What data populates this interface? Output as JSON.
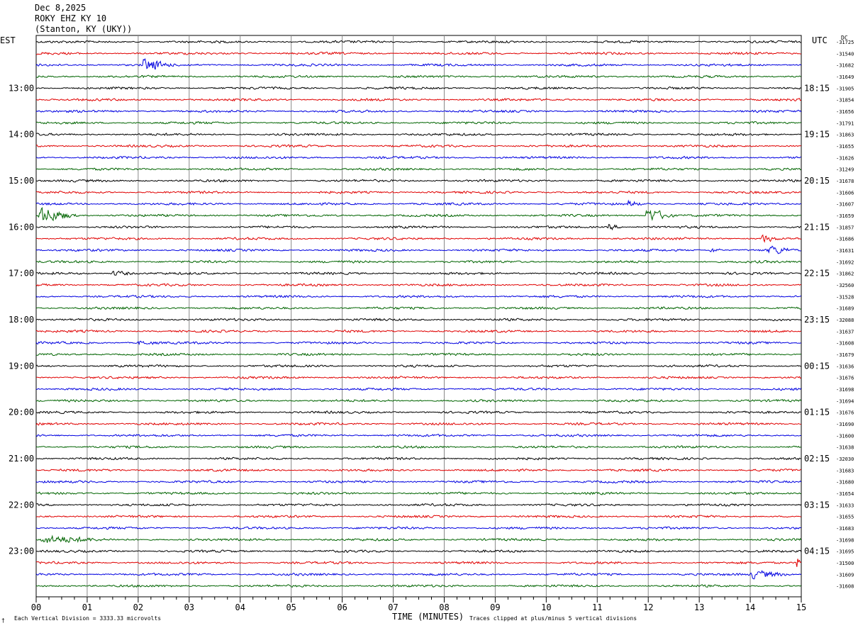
{
  "chart_data": {
    "type": "line",
    "title_lines": [
      "Dec 8,2025",
      "ROKY EHZ KY 10",
      "(Stanton, KY (UKY))"
    ],
    "left_axis_label": "EST",
    "right_axis_label": "UTC",
    "dc_label": "DC",
    "xlabel": "TIME (MINUTES)",
    "x_ticks": [
      "00",
      "01",
      "02",
      "03",
      "04",
      "05",
      "06",
      "07",
      "08",
      "09",
      "10",
      "11",
      "12",
      "13",
      "14",
      "15"
    ],
    "xlim": [
      0,
      15
    ],
    "est_hour_labels": [
      "13:00",
      "14:00",
      "15:00",
      "16:00",
      "17:00",
      "18:00",
      "19:00",
      "20:00",
      "21:00",
      "22:00",
      "23:00"
    ],
    "utc_hour_labels": [
      "18:15",
      "19:15",
      "20:15",
      "21:15",
      "22:15",
      "23:15",
      "00:15",
      "01:15",
      "02:15",
      "03:15",
      "04:15"
    ],
    "trace_colors": [
      "#000000",
      "#e00000",
      "#0000e0",
      "#006400"
    ],
    "dc_offsets": [
      "-31725",
      "-31540",
      "-31682",
      "-31649",
      "-31905",
      "-31854",
      "-31656",
      "-31791",
      "-31863",
      "-31655",
      "-31626",
      "-31249",
      "-31678",
      "-31606",
      "-31607",
      "-31659",
      "-31857",
      "-31686",
      "-31631",
      "-31692",
      "-31862",
      "-32560",
      "-31528",
      "-31689",
      "-32088",
      "-31637",
      "-31608",
      "-31679",
      "-31636",
      "-31676",
      "-31698",
      "-31694",
      "-31676",
      "-31690",
      "-31600",
      "-31638",
      "-32030",
      "-31683",
      "-31680",
      "-31654",
      "-31633",
      "-31655",
      "-31683",
      "-31698",
      "-31695",
      "-31500",
      "-31609",
      "-31608"
    ],
    "events": [
      {
        "trace": 2,
        "minute": 2.1,
        "amp": 9,
        "dur": 0.6
      },
      {
        "trace": 15,
        "minute": 0.05,
        "amp": 12,
        "dur": 0.8
      },
      {
        "trace": 14,
        "minute": 11.6,
        "amp": 5,
        "dur": 0.3
      },
      {
        "trace": 15,
        "minute": 11.95,
        "amp": 11,
        "dur": 0.6
      },
      {
        "trace": 16,
        "minute": 11.2,
        "amp": 5,
        "dur": 0.3
      },
      {
        "trace": 17,
        "minute": 14.2,
        "amp": 6,
        "dur": 0.4
      },
      {
        "trace": 18,
        "minute": 14.35,
        "amp": 7,
        "dur": 0.5
      },
      {
        "trace": 18,
        "minute": 13.2,
        "amp": 4,
        "dur": 0.3
      },
      {
        "trace": 20,
        "minute": 1.5,
        "amp": 4,
        "dur": 0.5
      },
      {
        "trace": 26,
        "minute": 2.0,
        "amp": 3,
        "dur": 0.5
      },
      {
        "trace": 45,
        "minute": 14.9,
        "amp": 9,
        "dur": 0.2
      },
      {
        "trace": 43,
        "minute": 0.1,
        "amp": 6,
        "dur": 1.2
      },
      {
        "trace": 46,
        "minute": 14.0,
        "amp": 6,
        "dur": 0.9
      }
    ],
    "footer_left": "Each Vertical Division = 3333.33 microvolts",
    "footer_right": "Traces clipped at plus/minus 5 vertical divisions",
    "grid": true
  }
}
